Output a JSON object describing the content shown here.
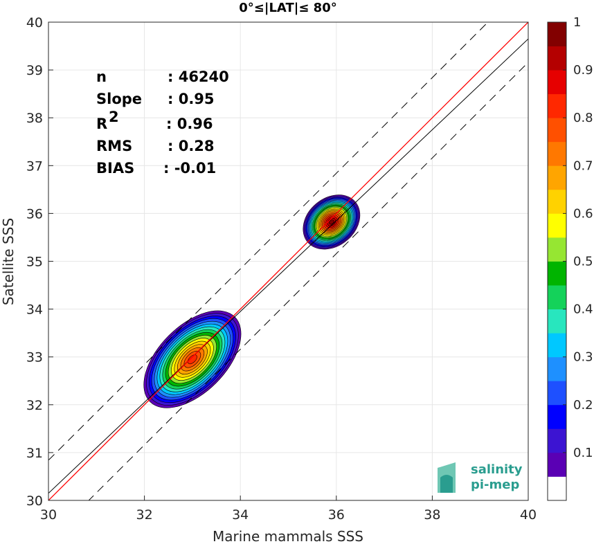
{
  "chart_data": {
    "type": "scatter",
    "title": "0°≤|LAT|≤ 80°",
    "xlabel": "Marine mammals SSS",
    "ylabel": "Satellite SSS",
    "xlim": [
      30,
      40
    ],
    "ylim": [
      30,
      40
    ],
    "xticks": [
      "30",
      "32",
      "34",
      "36",
      "38",
      "40"
    ],
    "yticks": [
      "30",
      "31",
      "32",
      "33",
      "34",
      "35",
      "36",
      "37",
      "38",
      "39",
      "40"
    ],
    "grid": true,
    "stats": [
      {
        "label": "n",
        "value": ": 46240"
      },
      {
        "label": "Slope",
        "value": ": 0.95"
      },
      {
        "label": "R",
        "sup": "2",
        "value": ": 0.96"
      },
      {
        "label": "RMS",
        "value": ": 0.28"
      },
      {
        "label": "BIAS",
        "value": ": -0.01"
      }
    ],
    "regression": {
      "slope": 0.95,
      "intercept": 1.65
    },
    "identity_line": {
      "slope": 1,
      "intercept": 0
    },
    "offset_lines": [
      0.84,
      -0.84
    ],
    "density_clusters": [
      {
        "cx": 33.0,
        "cy": 32.95,
        "rx": 1.25,
        "ry": 0.7,
        "angle_deg": 45,
        "peak": 0.85
      },
      {
        "cx": 35.9,
        "cy": 35.82,
        "rx": 0.65,
        "ry": 0.5,
        "angle_deg": 40,
        "peak": 1.0
      }
    ],
    "colorbar": {
      "ticks": [
        "0.1",
        "0.2",
        "0.3",
        "0.4",
        "0.5",
        "0.6",
        "0.7",
        "0.8",
        "0.9",
        "1"
      ],
      "colors": [
        "#ffffff",
        "#5a00b4",
        "#3c14d2",
        "#0000ff",
        "#1e50ff",
        "#1e90ff",
        "#00c8ff",
        "#28e6be",
        "#14d25a",
        "#00b400",
        "#96e632",
        "#ffff00",
        "#ffd200",
        "#ffa500",
        "#ff7800",
        "#ff5000",
        "#ff2800",
        "#e60000",
        "#b40000",
        "#820000"
      ]
    },
    "logo": {
      "line1": "salinity",
      "line2": "pi-mep"
    }
  }
}
